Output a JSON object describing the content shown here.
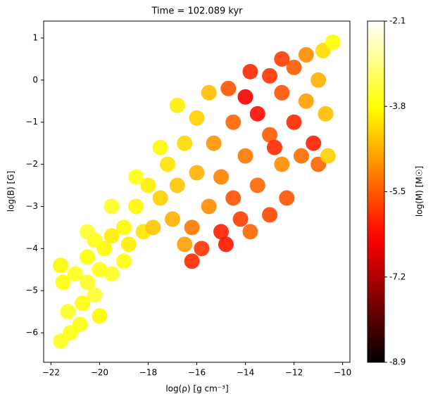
{
  "chart_data": {
    "type": "scatter",
    "title": "Time = 102.089 kyr",
    "x_label": "log(ρ) [g cm⁻³]",
    "y_label": "log(B) [G]",
    "colorbar_label": "log(M) [M☉]",
    "colormap": "hot",
    "xlim": [
      -22.3,
      -9.7
    ],
    "xticks": [
      {
        "value": -22,
        "label": "−22"
      },
      {
        "value": -20,
        "label": "−20"
      },
      {
        "value": -18,
        "label": "−18"
      },
      {
        "value": -16,
        "label": "−16"
      },
      {
        "value": -14,
        "label": "−14"
      },
      {
        "value": -12,
        "label": "−12"
      },
      {
        "value": -10,
        "label": "−10"
      }
    ],
    "ylim": [
      -6.7,
      1.4
    ],
    "yticks": [
      {
        "value": -6,
        "label": "−6"
      },
      {
        "value": -5,
        "label": "−5"
      },
      {
        "value": -4,
        "label": "−4"
      },
      {
        "value": -3,
        "label": "−3"
      },
      {
        "value": -2,
        "label": "−2"
      },
      {
        "value": -1,
        "label": "−1"
      },
      0,
      1
    ],
    "clim": [
      -8.9,
      -2.1
    ],
    "cticks": [
      -2.1,
      -3.8,
      -5.5,
      -7.2,
      -8.9
    ],
    "x": [
      -21.6,
      -21.2,
      -20.8,
      -21.3,
      -20.7,
      -21.5,
      -21,
      -20.5,
      -20,
      -20.5,
      -21.6,
      -20.2,
      -19.8,
      -19.5,
      -20.2,
      -19,
      -19.5,
      -18.5,
      -18.8,
      -18.2,
      -18,
      -17.5,
      -17.8,
      -17.2,
      -17,
      -16.8,
      -16.5,
      -16.2,
      -16,
      -16,
      -15.5,
      -15.8,
      -15.5,
      -15.3,
      -15,
      -15,
      -14.7,
      -14.5,
      -14.5,
      -14.2,
      -14,
      -14,
      -13.8,
      -13.5,
      -13.5,
      -13,
      -13,
      -13,
      -12.5,
      -12.5,
      -12.5,
      -12.3,
      -12,
      -12,
      -11.7,
      -11.5,
      -11.5,
      -11.2,
      -11,
      -11,
      -10.8,
      -10.7,
      -10.6,
      -10.4,
      -16.8,
      -17.5,
      -18.5,
      -19.5,
      -20.5,
      -16.2,
      -14.8,
      -13.8,
      -16.5,
      -19,
      -20,
      -12.8
    ],
    "values": [
      -6.2,
      -6,
      -5.8,
      -5.5,
      -5.3,
      -4.8,
      -4.6,
      -4.8,
      -4.5,
      -4.2,
      -4.4,
      -5.1,
      -4,
      -3.7,
      -3.8,
      -3.5,
      -4.6,
      -3,
      -3.9,
      -3.6,
      -2.5,
      -2.8,
      -3.5,
      -2,
      -3.3,
      -2.5,
      -1.5,
      -3.5,
      -2.2,
      -0.9,
      -3,
      -4,
      -0.3,
      -1.5,
      -2.3,
      -3.6,
      -0.2,
      -1,
      -2.8,
      -3.3,
      -0.4,
      -1.8,
      0.2,
      -0.8,
      -2.5,
      0.1,
      -1.3,
      -3.2,
      0.5,
      -0.3,
      -2,
      -2.8,
      -1,
      0.3,
      -1.8,
      -0.5,
      0.6,
      -1.5,
      -2,
      0,
      0.7,
      -0.8,
      -1.8,
      0.9,
      -0.6,
      -1.6,
      -2.3,
      -3,
      -3.6,
      -4.3,
      -3.9,
      -3.6,
      -3.9,
      -4.3,
      -5.6,
      -1.6
    ],
    "color_values": [
      -3.6,
      -3.7,
      -3.7,
      -3.6,
      -3.8,
      -3.8,
      -3.7,
      -3.6,
      -3.7,
      -3.8,
      -3.9,
      -3.5,
      -3.9,
      -4,
      -3.7,
      -3.9,
      -3.6,
      -3.9,
      -4,
      -4.1,
      -4,
      -4.3,
      -4.4,
      -4.1,
      -4.6,
      -4.4,
      -4.2,
      -5.2,
      -4.6,
      -4.3,
      -5,
      -5.9,
      -4.5,
      -4.9,
      -5.1,
      -6.1,
      -5.6,
      -5.4,
      -5.6,
      -5.8,
      -6.5,
      -5.2,
      -6,
      -6.3,
      -5.4,
      -5.9,
      -5.5,
      -5.7,
      -5.8,
      -5.6,
      -5,
      -5.6,
      -6,
      -5.5,
      -5.3,
      -4.8,
      -5,
      -6.1,
      -5.4,
      -4.6,
      -4.2,
      -4.5,
      -4.3,
      -3.8,
      -4,
      -3.9,
      -3.7,
      -3.6,
      -3.5,
      -6,
      -6.2,
      -5.4,
      -4.8,
      -3.8,
      -3.9,
      -6
    ]
  }
}
